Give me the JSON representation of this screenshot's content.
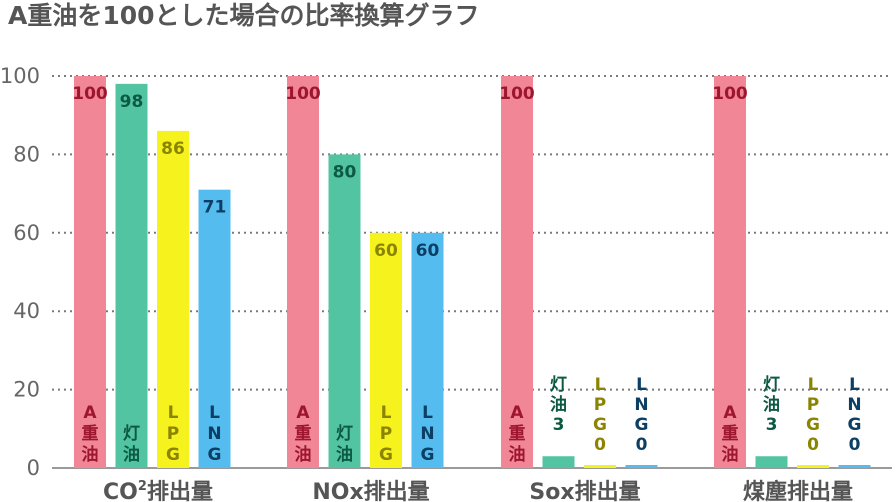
{
  "chart_data": {
    "type": "bar",
    "title": "A重油を100とした場合の比率換算グラフ",
    "xlabel": "",
    "ylabel": "",
    "ylim": [
      0,
      100
    ],
    "yticks": [
      0,
      20,
      40,
      60,
      80,
      100
    ],
    "grid": true,
    "legend": "none",
    "categories": [
      {
        "prefix": "CO",
        "sup": "2",
        "suffix": "排出量"
      },
      {
        "prefix": "NOx排出量",
        "sup": "",
        "suffix": ""
      },
      {
        "prefix": "Sox排出量",
        "sup": "",
        "suffix": ""
      },
      {
        "prefix": "煤塵排出量",
        "sup": "",
        "suffix": ""
      }
    ],
    "series": [
      {
        "label": "A重油",
        "color": "#f08696",
        "text_color": "#9e1530",
        "values": [
          100,
          100,
          100,
          100
        ]
      },
      {
        "label": "灯油",
        "color": "#53c4a2",
        "text_color": "#0d5a44",
        "values": [
          98,
          80,
          3,
          3
        ]
      },
      {
        "label": "LPG",
        "color": "#f5f21d",
        "text_color": "#8a8400",
        "values": [
          86,
          60,
          0,
          0
        ]
      },
      {
        "label": "LNG",
        "color": "#55bcef",
        "text_color": "#0c3f63",
        "values": [
          71,
          60,
          0,
          0
        ]
      }
    ]
  }
}
